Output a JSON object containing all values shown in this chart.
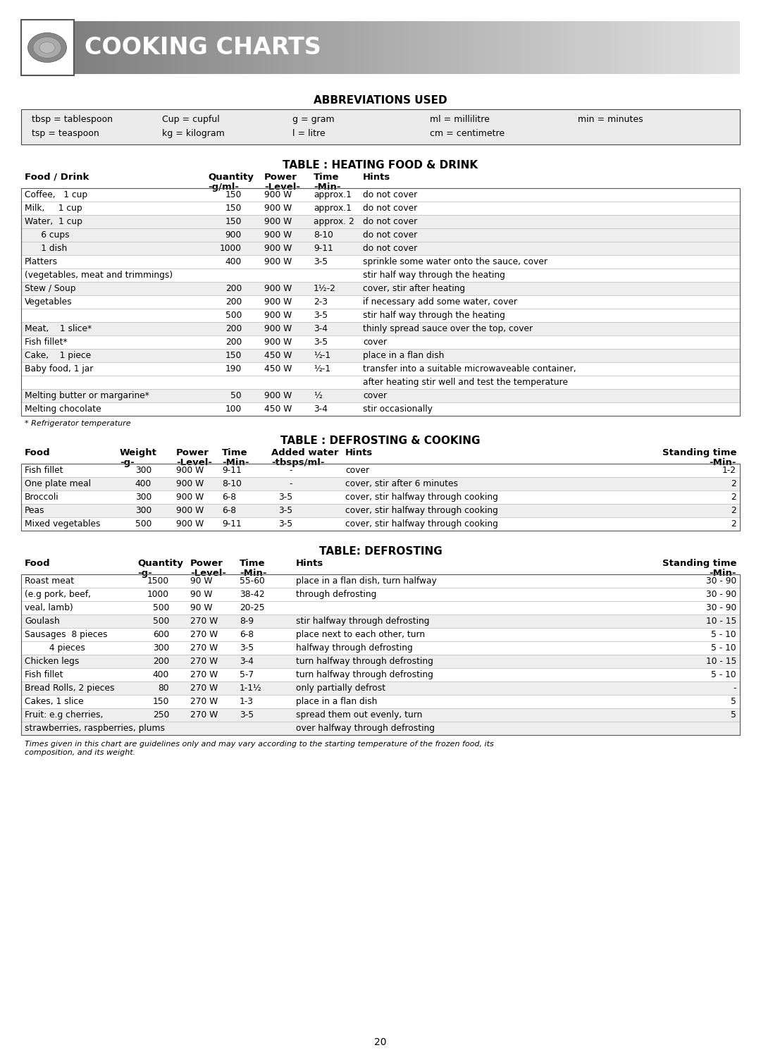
{
  "page_bg": "#ffffff",
  "header_text": "COOKING CHARTS",
  "abbrev_title": "ABBREVIATIONS USED",
  "abbrev_rows": [
    [
      "tbsp = tablespoon",
      "Cup = cupful",
      "g = gram",
      "ml = millilitre",
      "min = minutes"
    ],
    [
      "tsp = teaspoon",
      "kg = kilogram",
      "l = litre",
      "cm = centimetre",
      ""
    ]
  ],
  "heat_title": "TABLE : HEATING FOOD & DRINK",
  "heat_rows": [
    [
      "Coffee,   1 cup",
      "150",
      "900 W",
      "approx.1",
      "do not cover",
      "white"
    ],
    [
      "Milk,     1 cup",
      "150",
      "900 W",
      "approx.1",
      "do not cover",
      "white"
    ],
    [
      "Water,  1 cup",
      "150",
      "900 W",
      "approx. 2",
      "do not cover",
      "grey"
    ],
    [
      "      6 cups",
      "900",
      "900 W",
      "8-10",
      "do not cover",
      "grey"
    ],
    [
      "      1 dish",
      "1000",
      "900 W",
      "9-11",
      "do not cover",
      "grey"
    ],
    [
      "Platters",
      "400",
      "900 W",
      "3-5",
      "sprinkle some water onto the sauce, cover",
      "white"
    ],
    [
      "(vegetables, meat and trimmings)",
      "",
      "",
      "",
      "stir half way through the heating",
      "white"
    ],
    [
      "Stew / Soup",
      "200",
      "900 W",
      "1½-2",
      "cover, stir after heating",
      "grey"
    ],
    [
      "Vegetables",
      "200",
      "900 W",
      "2-3",
      "if necessary add some water, cover",
      "white"
    ],
    [
      "",
      "500",
      "900 W",
      "3-5",
      "stir half way through the heating",
      "white"
    ],
    [
      "Meat,    1 slice*",
      "200",
      "900 W",
      "3-4",
      "thinly spread sauce over the top, cover",
      "grey"
    ],
    [
      "Fish fillet*",
      "200",
      "900 W",
      "3-5",
      "cover",
      "white"
    ],
    [
      "Cake,    1 piece",
      "150",
      "450 W",
      "½-1",
      "place in a flan dish",
      "grey"
    ],
    [
      "Baby food, 1 jar",
      "190",
      "450 W",
      "½-1",
      "transfer into a suitable microwaveable container,",
      "white"
    ],
    [
      "",
      "",
      "",
      "",
      "after heating stir well and test the temperature",
      "white"
    ],
    [
      "Melting butter or margarine*",
      "50",
      "900 W",
      "½",
      "cover",
      "grey"
    ],
    [
      "Melting chocolate",
      "100",
      "450 W",
      "3-4",
      "stir occasionally",
      "white"
    ]
  ],
  "heat_footnote": "* Refrigerator temperature",
  "defcook_title": "TABLE : DEFROSTING & COOKING",
  "defcook_rows": [
    [
      "Fish fillet",
      "300",
      "900 W",
      "9-11",
      "-",
      "cover",
      "1-2",
      "white"
    ],
    [
      "One plate meal",
      "400",
      "900 W",
      "8-10",
      "-",
      "cover, stir after 6 minutes",
      "2",
      "grey"
    ],
    [
      "Broccoli",
      "300",
      "900 W",
      "6-8",
      "3-5",
      "cover, stir halfway through cooking",
      "2",
      "white"
    ],
    [
      "Peas",
      "300",
      "900 W",
      "6-8",
      "3-5",
      "cover, stir halfway through cooking",
      "2",
      "grey"
    ],
    [
      "Mixed vegetables",
      "500",
      "900 W",
      "9-11",
      "3-5",
      "cover, stir halfway through cooking",
      "2",
      "white"
    ]
  ],
  "defrost_title": "TABLE: DEFROSTING",
  "defrost_rows": [
    [
      "Roast meat",
      "1500",
      "90 W",
      "55-60",
      "place in a flan dish, turn halfway",
      "30 - 90",
      "white"
    ],
    [
      "(e.g pork, beef,",
      "1000",
      "90 W",
      "38-42",
      "through defrosting",
      "30 - 90",
      "white"
    ],
    [
      "veal, lamb)",
      "500",
      "90 W",
      "20-25",
      "",
      "30 - 90",
      "white"
    ],
    [
      "Goulash",
      "500",
      "270 W",
      "8-9",
      "stir halfway through defrosting",
      "10 - 15",
      "grey"
    ],
    [
      "Sausages  8 pieces",
      "600",
      "270 W",
      "6-8",
      "place next to each other, turn",
      "5 - 10",
      "white"
    ],
    [
      "         4 pieces",
      "300",
      "270 W",
      "3-5",
      "halfway through defrosting",
      "5 - 10",
      "white"
    ],
    [
      "Chicken legs",
      "200",
      "270 W",
      "3-4",
      "turn halfway through defrosting",
      "10 - 15",
      "grey"
    ],
    [
      "Fish fillet",
      "400",
      "270 W",
      "5-7",
      "turn halfway through defrosting",
      "5 - 10",
      "white"
    ],
    [
      "Bread Rolls, 2 pieces",
      "80",
      "270 W",
      "1-1½",
      "only partially defrost",
      "-",
      "grey"
    ],
    [
      "Cakes, 1 slice",
      "150",
      "270 W",
      "1-3",
      "place in a flan dish",
      "5",
      "white"
    ],
    [
      "Fruit: e.g cherries,",
      "250",
      "270 W",
      "3-5",
      "spread them out evenly, turn",
      "5",
      "grey"
    ],
    [
      "strawberries, raspberries, plums",
      "",
      "",
      "",
      "over halfway through defrosting",
      "",
      "grey"
    ]
  ],
  "defrost_footnote": "Times given in this chart are guidelines only and may vary according to the starting temperature of the frozen food, its\ncomposition, and its weight.",
  "page_number": "20"
}
